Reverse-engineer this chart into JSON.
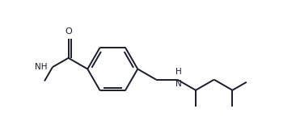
{
  "background_color": "#ffffff",
  "line_color": "#1a1a2e",
  "line_width": 1.4,
  "figsize": [
    3.66,
    1.71
  ],
  "dpi": 100,
  "NH_label": "NH",
  "HN_label": "H\nN",
  "O_label": "O",
  "font_size": 7.5,
  "bond_color": "#1a1a2e",
  "xlim": [
    0.0,
    10.0
  ],
  "ylim": [
    0.5,
    4.5
  ]
}
